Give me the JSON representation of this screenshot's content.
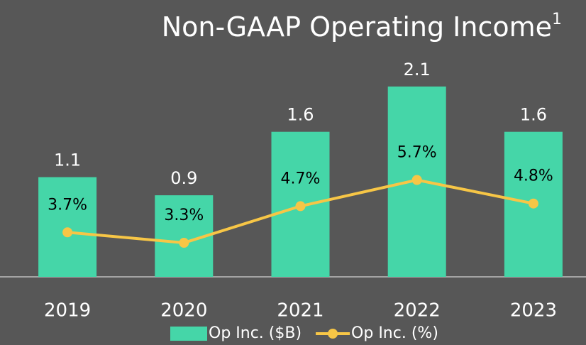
{
  "chart_data": {
    "type": "bar-line",
    "title": "Non-GAAP Operating Income",
    "title_note": "1",
    "categories": [
      "2019",
      "2020",
      "2021",
      "2022",
      "2023"
    ],
    "series": [
      {
        "name": "Op Inc. ($B)",
        "type": "bar",
        "color": "#45d6a8",
        "values": [
          1.1,
          0.9,
          1.6,
          2.1,
          1.6
        ]
      },
      {
        "name": "Op Inc. (%)",
        "type": "line",
        "axis": "y2",
        "color": "#f7c646",
        "values": [
          3.7,
          3.3,
          4.7,
          5.7,
          4.8
        ],
        "value_labels": [
          "3.7%",
          "3.3%",
          "4.7%",
          "5.7%",
          "4.8%"
        ]
      }
    ],
    "ylim": [
      0,
      2.6
    ],
    "y2lim": [
      2,
      11
    ],
    "legend": "bottom"
  }
}
